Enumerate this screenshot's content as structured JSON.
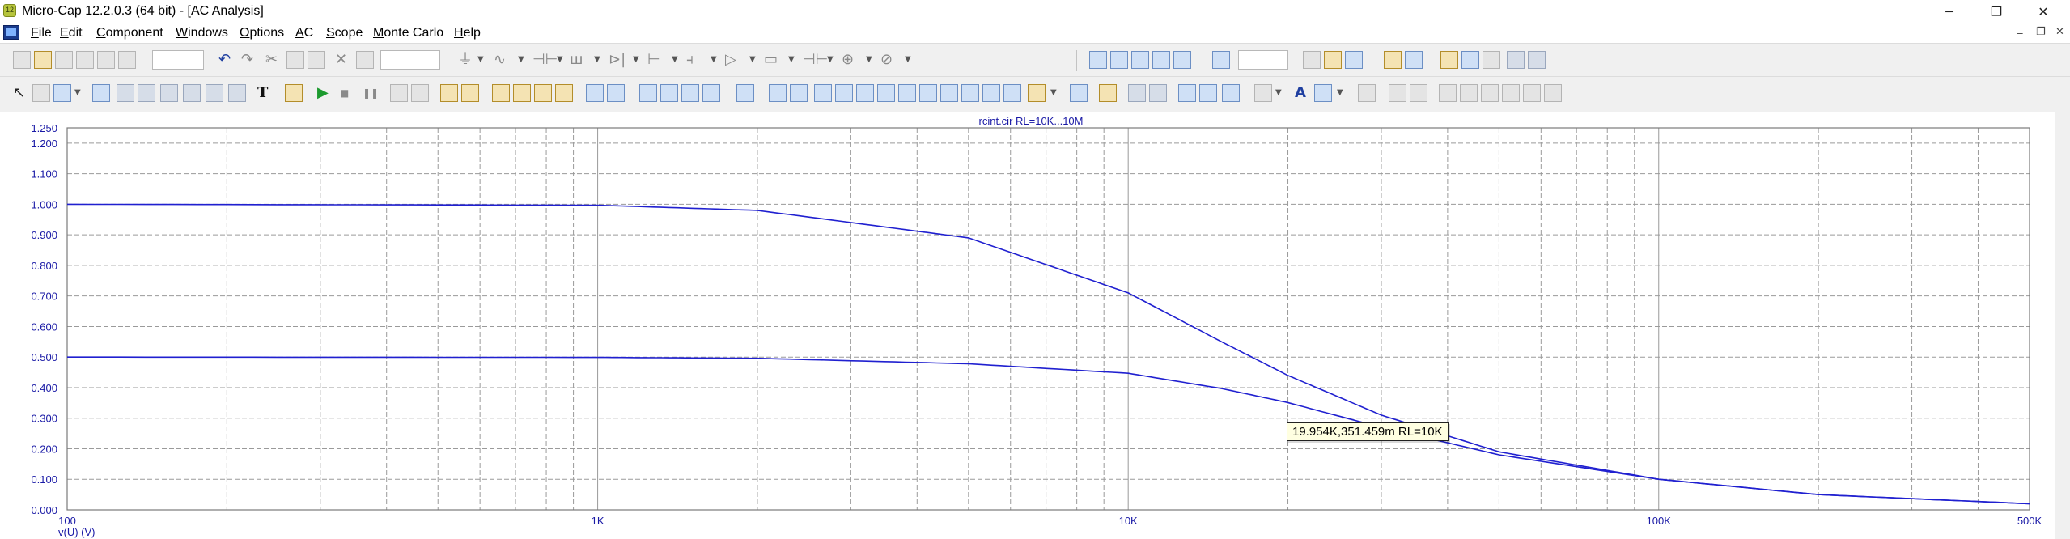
{
  "window": {
    "title": "Micro-Cap 12.2.0.3 (64 bit) - [AC Analysis]",
    "minimize_glyph": "─",
    "restore_glyph": "❐",
    "close_glyph": "✕",
    "mdi_minimize_glyph": "_",
    "mdi_restore_glyph": "❐",
    "mdi_close_glyph": "✕"
  },
  "menu": [
    {
      "label": "File",
      "ul": "F"
    },
    {
      "label": "Edit",
      "ul": "E"
    },
    {
      "label": "Component",
      "ul": "C"
    },
    {
      "label": "Windows",
      "ul": "W"
    },
    {
      "label": "Options",
      "ul": "O"
    },
    {
      "label": "AC",
      "ul": "A"
    },
    {
      "label": "Scope",
      "ul": "S"
    },
    {
      "label": "Monte Carlo",
      "ul": "M"
    },
    {
      "label": "Help",
      "ul": "H"
    }
  ],
  "toolbar_icons": {
    "text_tool": "T",
    "font_tool": "A",
    "run": "▶",
    "stop": "■",
    "pause": "❚❚"
  },
  "chart_data": {
    "type": "line",
    "title": "rcint.cir RL=10K...10M",
    "xscale": "log",
    "xlim": [
      100,
      500000
    ],
    "x_ticks": [
      "100",
      "1K",
      "10K",
      "100K",
      "500K"
    ],
    "ylim": [
      0,
      1.25
    ],
    "y_ticks": [
      "0.000",
      "0.100",
      "0.200",
      "0.300",
      "0.400",
      "0.500",
      "0.600",
      "0.700",
      "0.800",
      "0.900",
      "1.000",
      "1.100",
      "1.200",
      "1.250"
    ],
    "ylabel": "v(U) (V)",
    "grid": true,
    "line_color": "#2020d0",
    "series": [
      {
        "values_x": [
          100,
          1000,
          2000,
          5000,
          10000,
          15000,
          20000,
          30000,
          50000,
          100000,
          200000,
          500000
        ],
        "values_y": [
          1.0,
          0.997,
          0.98,
          0.89,
          0.71,
          0.55,
          0.44,
          0.31,
          0.19,
          0.1,
          0.05,
          0.02
        ]
      },
      {
        "values_x": [
          100,
          1000,
          2000,
          5000,
          10000,
          15000,
          19954,
          30000,
          50000,
          100000,
          200000,
          500000
        ],
        "values_y": [
          0.5,
          0.499,
          0.496,
          0.478,
          0.447,
          0.397,
          0.351459,
          0.27,
          0.18,
          0.1,
          0.05,
          0.02
        ]
      }
    ],
    "cursor_tip": "19.954K,351.459m RL=10K"
  }
}
